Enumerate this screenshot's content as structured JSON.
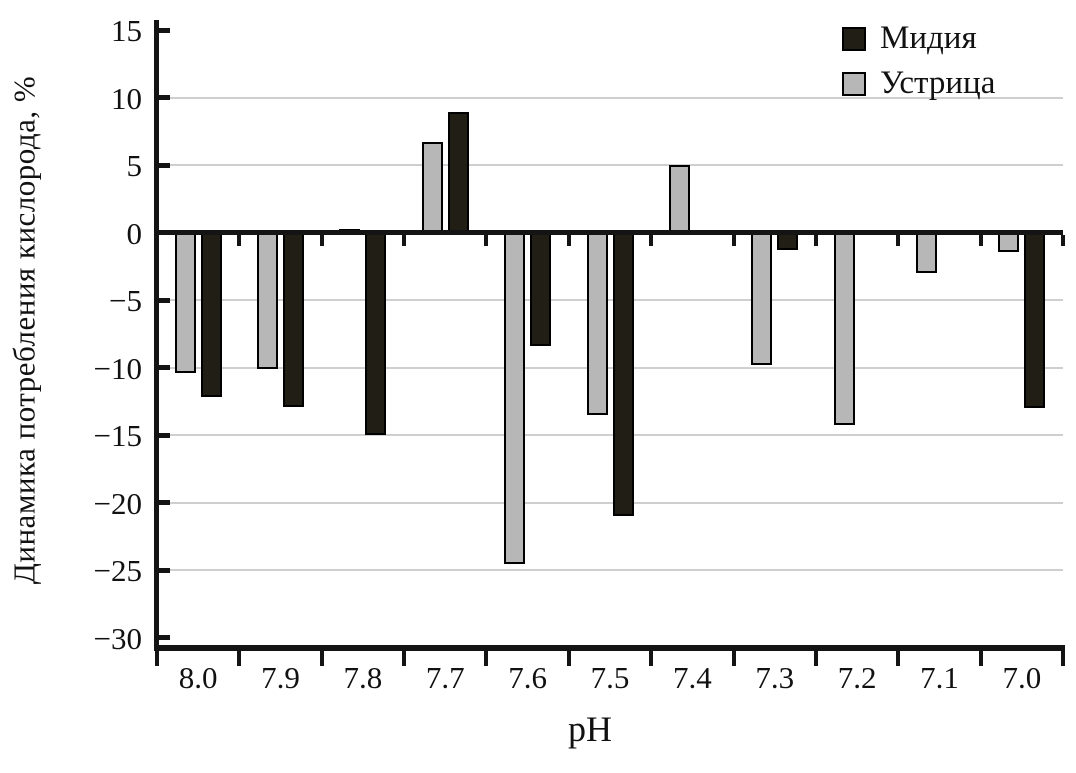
{
  "figure": {
    "background": "#ffffff",
    "axis_color": "#141414",
    "gridline_color": "#cfcfcf"
  },
  "legend": {
    "items": [
      {
        "label": "Мидия",
        "swatch": "mussel-swatch",
        "color": "#211f15"
      },
      {
        "label": "Устрица",
        "swatch": "oyster-swatch",
        "color": "#b7b7b7"
      }
    ]
  },
  "chart_data": {
    "type": "bar",
    "title": "",
    "xlabel": "pH",
    "ylabel": "Динамика потребления кислорода, %",
    "categories": [
      "8.0",
      "7.9",
      "7.8",
      "7.7",
      "7.6",
      "7.5",
      "7.4",
      "7.3",
      "7.2",
      "7.1",
      "7.0"
    ],
    "series": [
      {
        "name": "Мидия",
        "key": "mussel",
        "color": "#211f15",
        "values": [
          -12.2,
          -12.9,
          -15.0,
          8.9,
          -8.4,
          -21.0,
          0,
          -1.3,
          0,
          0,
          -13.0
        ]
      },
      {
        "name": "Устрица",
        "key": "oyster",
        "color": "#b7b7b7",
        "values": [
          -10.4,
          -10.1,
          0.3,
          6.7,
          -24.5,
          -13.5,
          5.0,
          -9.8,
          -14.2,
          -3.0,
          -1.4
        ]
      }
    ],
    "ylim": [
      -30,
      15
    ],
    "yticks": [
      15,
      10,
      5,
      0,
      -5,
      -10,
      -15,
      -20,
      -25,
      -30
    ],
    "ytick_labels": [
      "15",
      "10",
      "5",
      "0",
      "−5",
      "−10",
      "−15",
      "−20",
      "−25",
      "−30"
    ],
    "grid": true,
    "legend_position": "top-right",
    "bar_order_in_group": [
      "Устрица",
      "Мидия"
    ]
  }
}
